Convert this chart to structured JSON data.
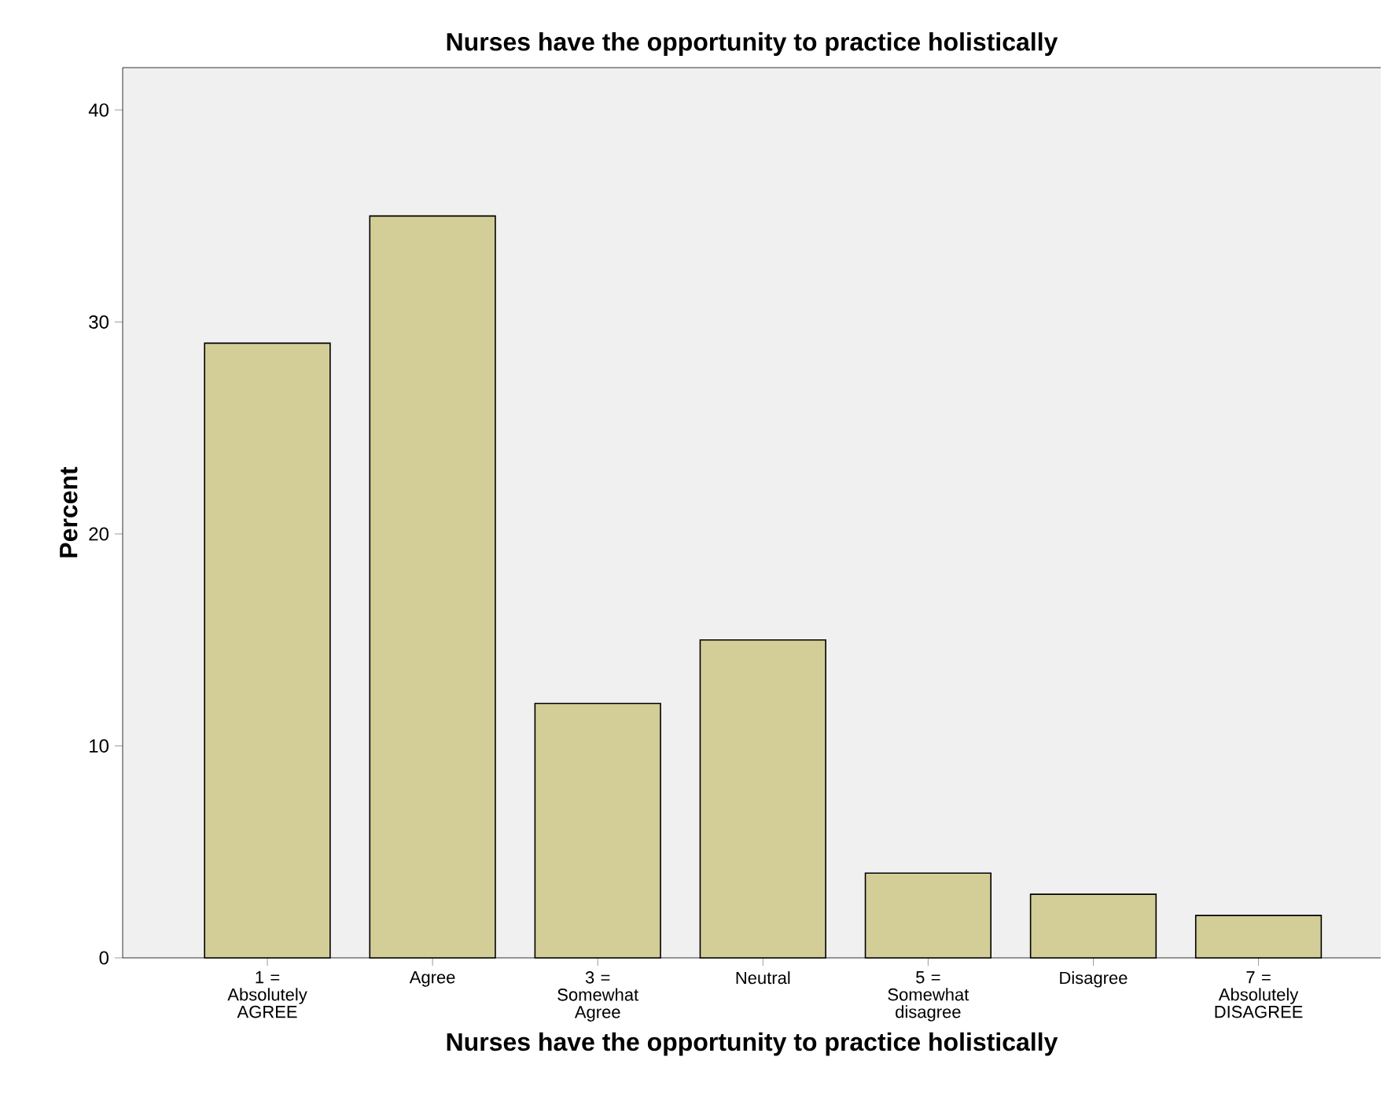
{
  "chart_data": {
    "type": "bar",
    "title": "Nurses have the opportunity to practice holistically",
    "xlabel": "Nurses have the opportunity to practice holistically",
    "ylabel": "Percent",
    "categories": [
      "1 = Absolutely AGREE",
      "Agree",
      "3 = Somewhat Agree",
      "Neutral",
      "5 = Somewhat disagree",
      "Disagree",
      "7 = Absolutely DISAGREE"
    ],
    "values": [
      29,
      35,
      12,
      15,
      4,
      3,
      2
    ],
    "color": "#d3ce97",
    "ylim": [
      0,
      42
    ],
    "yticks": [
      0,
      10,
      20,
      30,
      40
    ]
  }
}
